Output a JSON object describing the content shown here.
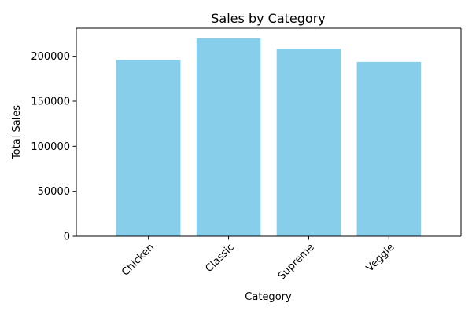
{
  "chart_data": {
    "type": "bar",
    "title": "Sales by Category",
    "xlabel": "Category",
    "ylabel": "Total Sales",
    "categories": [
      "Chicken",
      "Classic",
      "Supreme",
      "Veggie"
    ],
    "values": [
      195900,
      220100,
      208200,
      193700
    ],
    "ylim": [
      0,
      231105
    ],
    "yticks": [
      0,
      50000,
      100000,
      150000,
      200000
    ],
    "ytick_labels": [
      "0",
      "50000",
      "100000",
      "150000",
      "200000"
    ],
    "xtick_rotation": 45,
    "bar_color": "#87ceeb",
    "grid": false,
    "legend": "none"
  }
}
